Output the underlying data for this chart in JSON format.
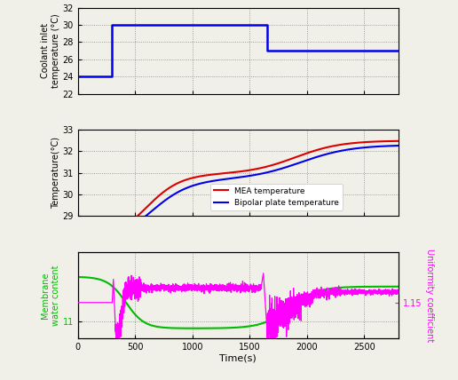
{
  "xlim": [
    0,
    2800
  ],
  "xticks": [
    0,
    500,
    1000,
    1500,
    2000,
    2500
  ],
  "xlabel": "Time(s)",
  "bg_color": "#f0f0e8",
  "plot1": {
    "ylabel": "Coolant inlet\ntemperature (°C)",
    "ylim": [
      22,
      32
    ],
    "yticks": [
      22,
      24,
      26,
      28,
      30,
      32
    ],
    "step_x": [
      0,
      300,
      300,
      1650,
      1650,
      2800
    ],
    "step_y": [
      24,
      24,
      30,
      30,
      27,
      27
    ],
    "color": "#0000ee"
  },
  "plot2": {
    "ylabel": "Temperature(°C)",
    "ylim": [
      29,
      33
    ],
    "yticks": [
      29,
      30,
      31,
      32,
      33
    ],
    "mea_color": "#dd0000",
    "bp_color": "#0000ee",
    "legend_mea": "MEA temperature",
    "legend_bp": "Bipolar plate temperature"
  },
  "plot3": {
    "ylabel_left": "Membrane\nwater content",
    "ylabel_right": "Uniformity coefficient",
    "ylim_left": [
      10.3,
      13.8
    ],
    "ylim_right": [
      1.09,
      1.235
    ],
    "ytick_left": 11,
    "ytick_right": 1.15,
    "green_color": "#00bb00",
    "magenta_color": "#ff00ff"
  }
}
